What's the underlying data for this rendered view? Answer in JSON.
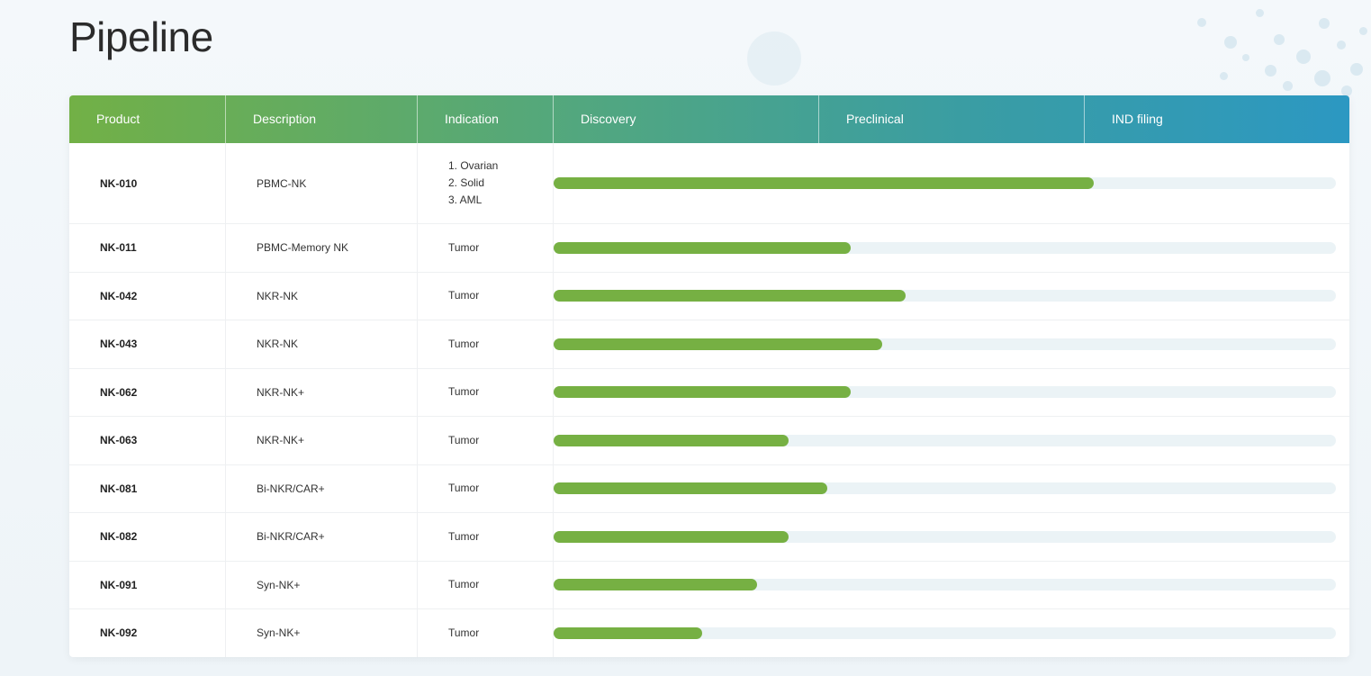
{
  "page": {
    "title": "Pipeline"
  },
  "table": {
    "headers": [
      "Product",
      "Description",
      "Indication",
      "Discovery",
      "Preclinical",
      "IND filing"
    ],
    "rows": [
      {
        "product": "NK-010",
        "description": "PBMC-NK",
        "indication": [
          "1. Ovarian",
          "2. Solid",
          "3. AML"
        ],
        "progress": 0.69
      },
      {
        "product": "NK-011",
        "description": "PBMC-Memory NK",
        "indication": [
          "Tumor"
        ],
        "progress": 0.38
      },
      {
        "product": "NK-042",
        "description": "NKR-NK",
        "indication": [
          "Tumor"
        ],
        "progress": 0.45
      },
      {
        "product": "NK-043",
        "description": "NKR-NK",
        "indication": [
          "Tumor"
        ],
        "progress": 0.42
      },
      {
        "product": "NK-062",
        "description": "NKR-NK+",
        "indication": [
          "Tumor"
        ],
        "progress": 0.38
      },
      {
        "product": "NK-063",
        "description": "NKR-NK+",
        "indication": [
          "Tumor"
        ],
        "progress": 0.3
      },
      {
        "product": "NK-081",
        "description": "Bi-NKR/CAR+",
        "indication": [
          "Tumor"
        ],
        "progress": 0.35
      },
      {
        "product": "NK-082",
        "description": "Bi-NKR/CAR+",
        "indication": [
          "Tumor"
        ],
        "progress": 0.3
      },
      {
        "product": "NK-091",
        "description": "Syn-NK+",
        "indication": [
          "Tumor"
        ],
        "progress": 0.26
      },
      {
        "product": "NK-092",
        "description": "Syn-NK+",
        "indication": [
          "Tumor"
        ],
        "progress": 0.19
      }
    ]
  },
  "colors": {
    "progress_fill": "#76b043",
    "progress_track": "#ebf3f6",
    "header_gradient_start": "#72b046",
    "header_gradient_end": "#2c98c2"
  }
}
